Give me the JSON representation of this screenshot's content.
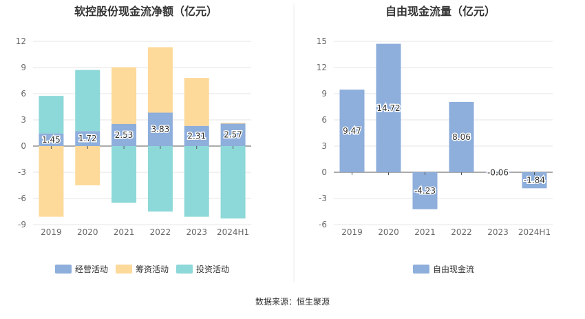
{
  "source_note": "数据来源：恒生聚源",
  "chart_data": [
    {
      "type": "bar",
      "stacked": true,
      "title": "软控股份现金流净额（亿元）",
      "categories": [
        "2019",
        "2020",
        "2021",
        "2022",
        "2023",
        "2024H1"
      ],
      "ylim": [
        -9,
        12
      ],
      "yticks": [
        "12",
        "9",
        "6",
        "3",
        "0",
        "-3",
        "-6",
        "-9"
      ],
      "grid": true,
      "legend": "bottom",
      "series": [
        {
          "name": "经营活动",
          "color": "#8eaedb",
          "values": [
            1.45,
            1.72,
            2.53,
            3.83,
            2.31,
            2.57
          ],
          "labels": [
            "1.45",
            "1.72",
            "2.53",
            "3.83",
            "2.31",
            "2.57"
          ]
        },
        {
          "name": "筹资活动",
          "color": "#fdd99a",
          "values": [
            -8.1,
            -4.5,
            6.5,
            7.5,
            5.5,
            0.1
          ]
        },
        {
          "name": "投资活动",
          "color": "#8dd8d8",
          "values": [
            4.3,
            7.0,
            -6.5,
            -7.5,
            -8.1,
            -8.3
          ]
        }
      ]
    },
    {
      "type": "bar",
      "title": "自由现金流量（亿元）",
      "categories": [
        "2019",
        "2020",
        "2021",
        "2022",
        "2023",
        "2024H1"
      ],
      "ylim": [
        -6,
        15
      ],
      "yticks": [
        "15",
        "12",
        "9",
        "6",
        "3",
        "0",
        "-3",
        "-6"
      ],
      "grid": true,
      "legend": "bottom",
      "series": [
        {
          "name": "自由现金流",
          "color": "#8eaedb",
          "values": [
            9.47,
            14.72,
            -4.23,
            8.06,
            -0.06,
            -1.84
          ],
          "labels": [
            "9.47",
            "14.72",
            "-4.23",
            "8.06",
            "-0.06",
            "-1.84"
          ]
        }
      ]
    }
  ]
}
